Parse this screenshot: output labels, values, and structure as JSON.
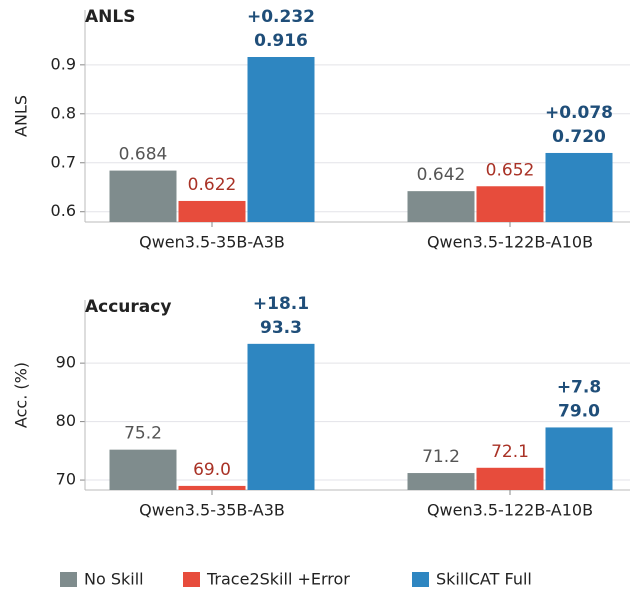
{
  "chart_data": [
    {
      "type": "bar",
      "title": "ANLS",
      "ylabel": "ANLS",
      "categories": [
        "Qwen3.5-35B-A3B",
        "Qwen3.5-122B-A10B"
      ],
      "series": [
        {
          "name": "No Skill",
          "color": "#7f8c8d",
          "values": [
            0.684,
            0.642
          ],
          "value_labels": [
            "0.684",
            "0.642"
          ]
        },
        {
          "name": "Trace2Skill +Error",
          "color": "#e74c3c",
          "values": [
            0.622,
            0.652
          ],
          "value_labels": [
            "0.622",
            "0.652"
          ]
        },
        {
          "name": "SkillCAT Full",
          "color": "#2e86c1",
          "values": [
            0.916,
            0.72
          ],
          "value_labels": [
            "0.916",
            "0.720"
          ]
        }
      ],
      "annotations": [
        "+0.232",
        "+0.078"
      ],
      "ylim": [
        0.579,
        1.012
      ],
      "yticks": [
        0.6,
        0.7,
        0.8,
        0.9
      ],
      "grid": true
    },
    {
      "type": "bar",
      "title": "Accuracy",
      "ylabel": "Acc. (%)",
      "categories": [
        "Qwen3.5-35B-A3B",
        "Qwen3.5-122B-A10B"
      ],
      "series": [
        {
          "name": "No Skill",
          "color": "#7f8c8d",
          "values": [
            75.2,
            71.2
          ],
          "value_labels": [
            "75.2",
            "71.2"
          ]
        },
        {
          "name": "Trace2Skill +Error",
          "color": "#e74c3c",
          "values": [
            69.0,
            72.1
          ],
          "value_labels": [
            "69.0",
            "72.1"
          ]
        },
        {
          "name": "SkillCAT Full",
          "color": "#2e86c1",
          "values": [
            93.3,
            79.0
          ],
          "value_labels": [
            "93.3",
            "79.0"
          ]
        }
      ],
      "annotations": [
        "+18.1",
        "+7.8"
      ],
      "ylim": [
        68.3,
        100.8
      ],
      "yticks": [
        70,
        80,
        90
      ],
      "grid": true
    }
  ]
}
